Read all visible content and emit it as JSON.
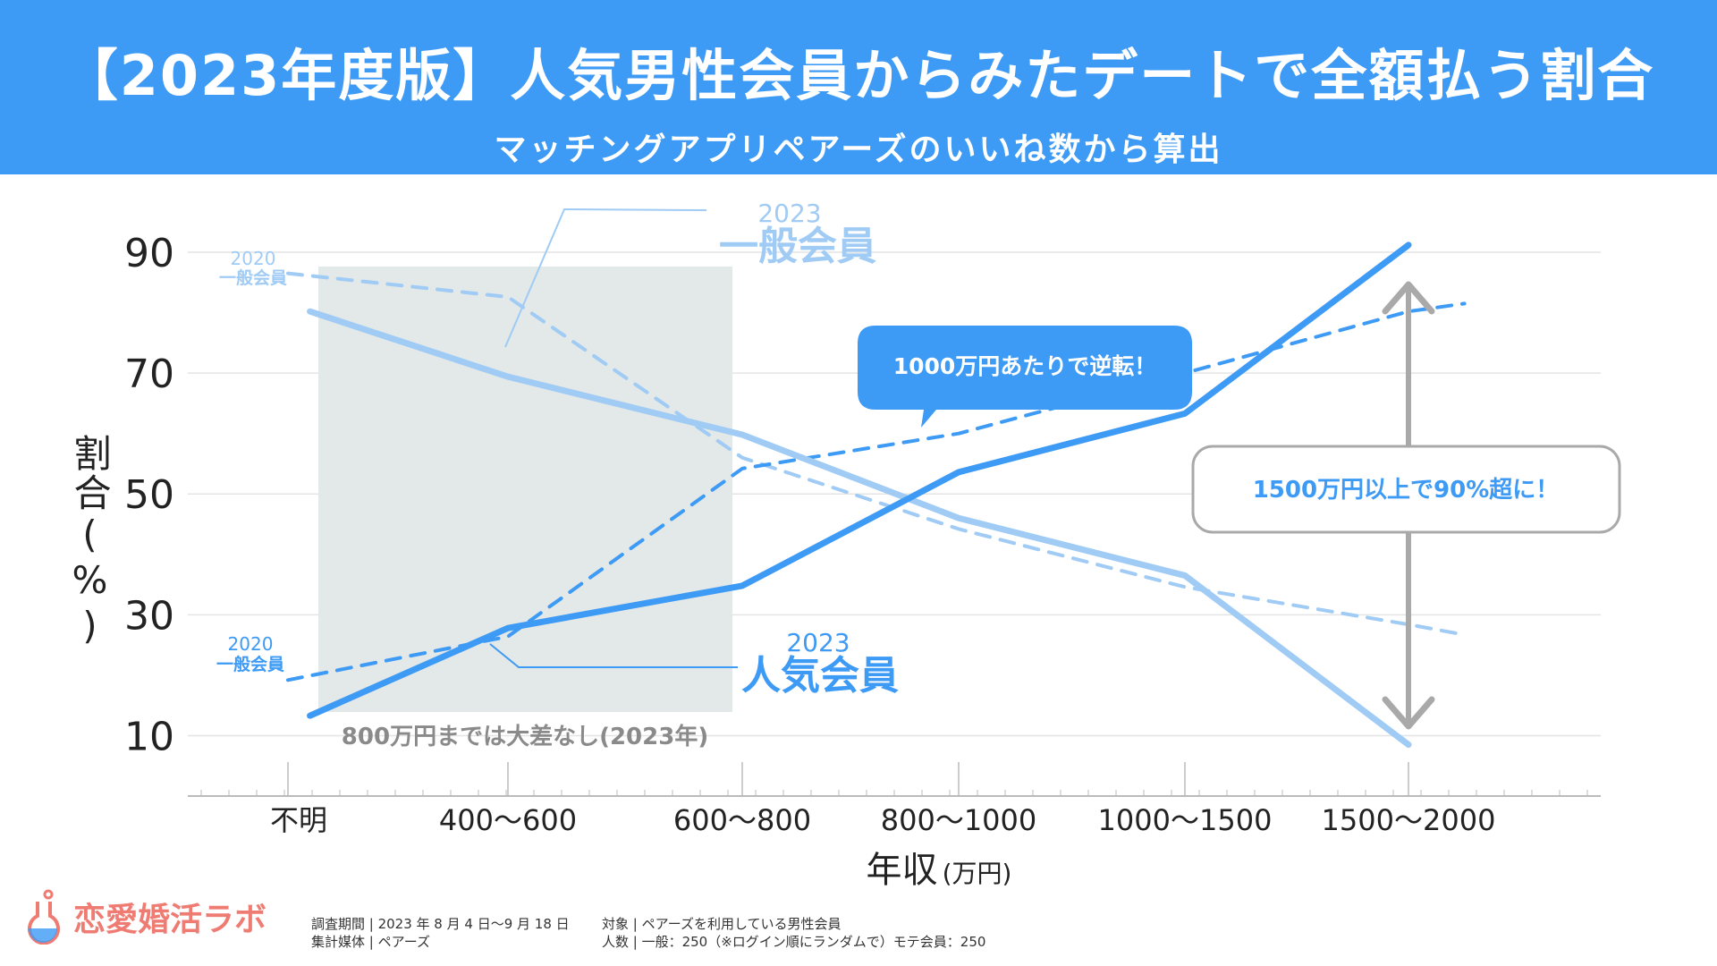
{
  "header": {
    "title": "【2023年度版】人気男性会員からみたデートで全額払う割合",
    "subtitle": "マッチングアプリペアーズのいいね数から算出"
  },
  "colors": {
    "header_bg": "#3d9af5",
    "popular": "#3d9af5",
    "general": "#9fcbf5",
    "highlight_box": "#e3e8e8",
    "arrow": "#a9a9a9",
    "logo": "#ef7c73"
  },
  "chart_data": {
    "type": "line",
    "categories": [
      "不明",
      "400〜600",
      "600〜800",
      "800〜1000",
      "1000〜1500",
      "1500〜2000"
    ],
    "xlabel": "年収",
    "xlabel_unit": "(万円)",
    "ylabel": "割合(%)",
    "yticks": [
      10,
      30,
      50,
      70,
      90
    ],
    "ylim": [
      0,
      90
    ],
    "grid": true,
    "series": [
      {
        "key": "popular_2023",
        "label_year": "2023",
        "label_name": "人気会員",
        "style": "solid",
        "color": "#3d9af5",
        "x": [
          0.1,
          1.0,
          2.0,
          3.0,
          4.0,
          5.0
        ],
        "values": [
          13.3,
          27.8,
          34.8,
          53.6,
          63.3,
          91.2
        ]
      },
      {
        "key": "general_2023",
        "label_year": "2023",
        "label_name": "一般会員",
        "style": "solid",
        "color": "#9fcbf5",
        "x": [
          0.1,
          1.0,
          2.0,
          3.0,
          4.0,
          5.0
        ],
        "values": [
          80.2,
          69.4,
          59.8,
          46.0,
          36.5,
          8.5
        ]
      },
      {
        "key": "general_2020_upper",
        "label_year": "2020",
        "label_name": "一般会員",
        "style": "dashed",
        "color": "#9fcbf5",
        "x": [
          0.0,
          1.0,
          2.0,
          3.0,
          4.0,
          5.0,
          5.25
        ],
        "values": [
          86.5,
          82.6,
          56.0,
          44.2,
          34.6,
          28.4,
          26.7
        ]
      },
      {
        "key": "general_2020_lower",
        "label_year": "2020",
        "label_name": "一般会員",
        "style": "dashed",
        "color": "#3d9af5",
        "x": [
          0.0,
          1.0,
          2.0,
          3.0,
          4.0,
          5.0,
          5.25
        ],
        "values": [
          19.2,
          26.4,
          54.2,
          60.0,
          70.0,
          80.2,
          81.5
        ]
      }
    ],
    "annotations": {
      "reversal": "1000万円あたりで逆転！",
      "over90": "1500万円以上で90%超に！",
      "no_diff": "800万円までは大差なし(2023年)"
    }
  },
  "footer": {
    "logo_text": "恋愛婚活ラボ",
    "survey_period": "調査期間 | 2023 年 8 月 4 日〜9 月 18 日",
    "media": "集計媒体 | ペアーズ",
    "target": "対象 | ペアーズを利用している男性会員",
    "count": "人数 | 一般：250（※ログイン順にランダムで）モテ会員：250"
  }
}
